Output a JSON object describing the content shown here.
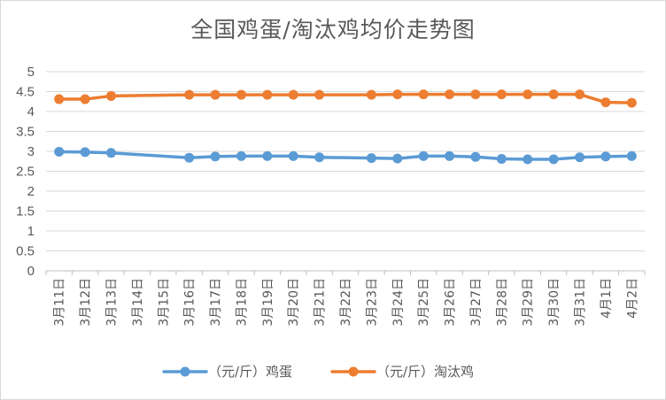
{
  "chart_data": {
    "type": "line",
    "title": "全国鸡蛋/淘汰鸡均价走势图",
    "categories": [
      "3月11日",
      "3月12日",
      "3月13日",
      "3月14日",
      "3月15日",
      "3月16日",
      "3月17日",
      "3月18日",
      "3月19日",
      "3月20日",
      "3月21日",
      "3月22日",
      "3月23日",
      "3月24日",
      "3月25日",
      "3月26日",
      "3月27日",
      "3月28日",
      "3月29日",
      "3月30日",
      "3月31日",
      "4月1日",
      "4月2日"
    ],
    "series": [
      {
        "name": "（元/斤）鸡蛋",
        "color": "#5b9bd5",
        "values": [
          2.99,
          2.98,
          2.96,
          null,
          null,
          2.84,
          2.87,
          2.88,
          2.88,
          2.88,
          2.85,
          null,
          2.83,
          2.82,
          2.88,
          2.88,
          2.86,
          2.81,
          2.8,
          2.8,
          2.85,
          2.87,
          2.88
        ]
      },
      {
        "name": "（元/斤）淘汰鸡",
        "color": "#ed7d31",
        "values": [
          4.31,
          4.31,
          4.39,
          null,
          null,
          4.42,
          4.42,
          4.42,
          4.42,
          4.42,
          4.42,
          null,
          4.42,
          4.43,
          4.43,
          4.43,
          4.43,
          4.43,
          4.43,
          4.43,
          4.43,
          4.23,
          4.22
        ]
      }
    ],
    "ylim": [
      0,
      5
    ],
    "yticks": [
      "0",
      "0.5",
      "1",
      "1.5",
      "2",
      "2.5",
      "3",
      "3.5",
      "4",
      "4.5",
      "5"
    ],
    "grid": true,
    "legend_position": "bottom"
  }
}
